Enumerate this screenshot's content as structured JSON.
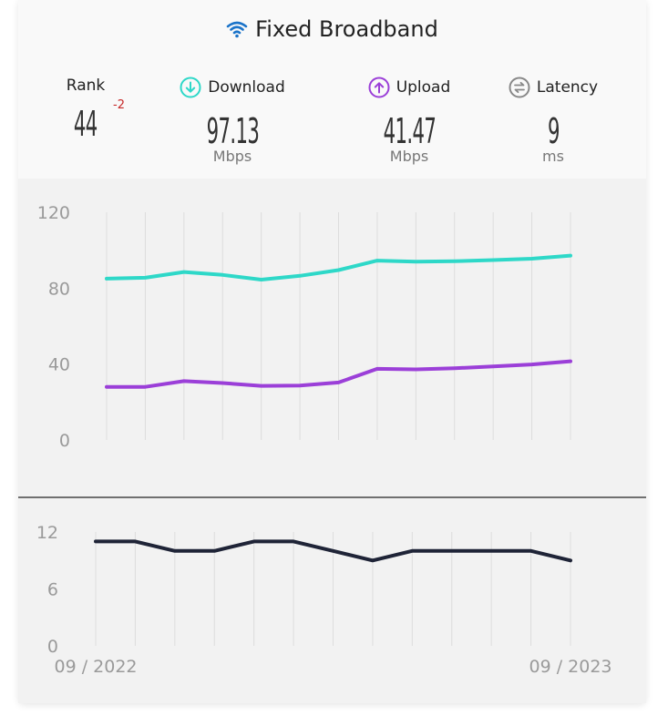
{
  "header": {
    "title": "Fixed Broadband",
    "icon": "wifi-icon",
    "accent": "#1a73c9"
  },
  "stats": {
    "rank": {
      "label": "Rank",
      "value": "44",
      "change": "-2",
      "change_color": "#c62828"
    },
    "download": {
      "label": "Download",
      "value": "97.13",
      "unit": "Mbps",
      "icon": "arrow-down-circle-icon",
      "color": "#2ed8c8"
    },
    "upload": {
      "label": "Upload",
      "value": "41.47",
      "unit": "Mbps",
      "icon": "arrow-up-circle-icon",
      "color": "#9b3fd8"
    },
    "latency": {
      "label": "Latency",
      "value": "9",
      "unit": "ms",
      "icon": "latency-icon",
      "color": "#888888"
    }
  },
  "chart_data": [
    {
      "type": "line",
      "x_count": 13,
      "ylim": [
        0,
        120
      ],
      "yticks": [
        "0",
        "40",
        "80",
        "120"
      ],
      "grid": true,
      "series": [
        {
          "name": "Download",
          "color": "#2ed8c8",
          "values": [
            85,
            85.5,
            88.5,
            87,
            84.5,
            86.5,
            89.5,
            94.5,
            94,
            94.2,
            94.8,
            95.5,
            97.13
          ]
        },
        {
          "name": "Upload",
          "color": "#9b3fd8",
          "values": [
            28,
            28,
            31,
            30,
            28.5,
            28.7,
            30.3,
            37.5,
            37.2,
            37.8,
            38.8,
            39.8,
            41.47
          ]
        }
      ]
    },
    {
      "type": "line",
      "x_count": 13,
      "ylim": [
        0,
        12
      ],
      "yticks": [
        "0",
        "6",
        "12"
      ],
      "grid": true,
      "x_start_label": "09 / 2022",
      "x_end_label": "09 / 2023",
      "series": [
        {
          "name": "Latency",
          "color": "#1f2437",
          "values": [
            11,
            11,
            10,
            10,
            11,
            11,
            10,
            9,
            10,
            10,
            10,
            10,
            9
          ]
        }
      ]
    }
  ]
}
